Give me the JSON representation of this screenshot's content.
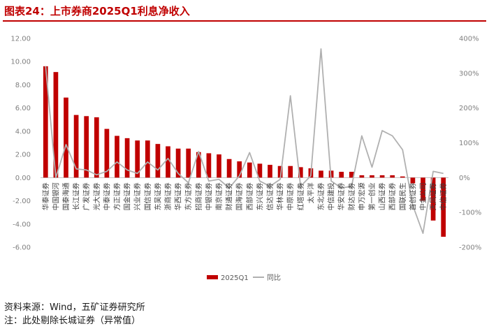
{
  "page_title": "图表24：上市券商2025Q1利息净收入",
  "notes": {
    "source": "资料来源：Wind，五矿证券研究所",
    "note": "注：此处剔除长城证券（异常值）"
  },
  "colors": {
    "accent": "#c00000",
    "bar": "#c00000",
    "line": "#b0b0b0"
  },
  "chart_data": {
    "type": "bar",
    "title": "",
    "categories": [
      "华泰证券",
      "中国银河",
      "国泰海通",
      "长江证券",
      "广发证券",
      "光大证券",
      "中泰证券",
      "方正证券",
      "国金证券",
      "兴业证券",
      "国信证券",
      "东吴证券",
      "浙商证券",
      "华西证券",
      "东方证券",
      "招商证券",
      "中银证券",
      "南京证券",
      "财通证券",
      "国海证券",
      "西部证券",
      "东兴证券",
      "信达证券",
      "华林证券",
      "中原证券",
      "红塔证券",
      "太平洋",
      "东北证券",
      "中信建投",
      "华安证券",
      "财达证券",
      "申万宏源",
      "第一创业",
      "山西证券",
      "西部证券",
      "国联民生",
      "首创证券",
      "中金公司",
      "天风证券",
      "中信证券"
    ],
    "series": [
      {
        "name": "2025Q1",
        "type": "bar",
        "axis": "left",
        "values": [
          9.6,
          9.1,
          6.9,
          5.4,
          5.3,
          5.2,
          4.2,
          3.6,
          3.4,
          3.2,
          3.2,
          2.9,
          2.7,
          2.5,
          2.5,
          2.2,
          2.1,
          2.0,
          1.6,
          1.4,
          1.3,
          1.2,
          1.1,
          1.0,
          1.0,
          0.9,
          0.8,
          0.6,
          0.6,
          0.5,
          0.5,
          0.2,
          0.2,
          0.2,
          0.2,
          0.1,
          -0.5,
          -2.0,
          -3.7,
          -5.1
        ]
      },
      {
        "name": "同比",
        "type": "line",
        "axis": "right",
        "unit": "%",
        "values": [
          320,
          0,
          95,
          25,
          22,
          8,
          18,
          45,
          22,
          12,
          45,
          22,
          55,
          12,
          -15,
          75,
          -10,
          -5,
          -30,
          5,
          72,
          -10,
          -25,
          -5,
          235,
          -25,
          5,
          370,
          -10,
          -30,
          -25,
          120,
          30,
          135,
          120,
          80,
          -80,
          -160,
          18,
          12
        ]
      }
    ],
    "y_left": {
      "min": -6,
      "max": 12,
      "ticks": [
        "12.00",
        "10.00",
        "8.00",
        "6.00",
        "4.00",
        "2.00",
        "0.00",
        "-2.00",
        "-4.00",
        "-6.00"
      ]
    },
    "y_right": {
      "min": -200,
      "max": 400,
      "ticks": [
        "400%",
        "300%",
        "200%",
        "100%",
        "0%",
        "-100%",
        "-200%"
      ]
    },
    "legend_position": "bottom",
    "grid": false
  }
}
